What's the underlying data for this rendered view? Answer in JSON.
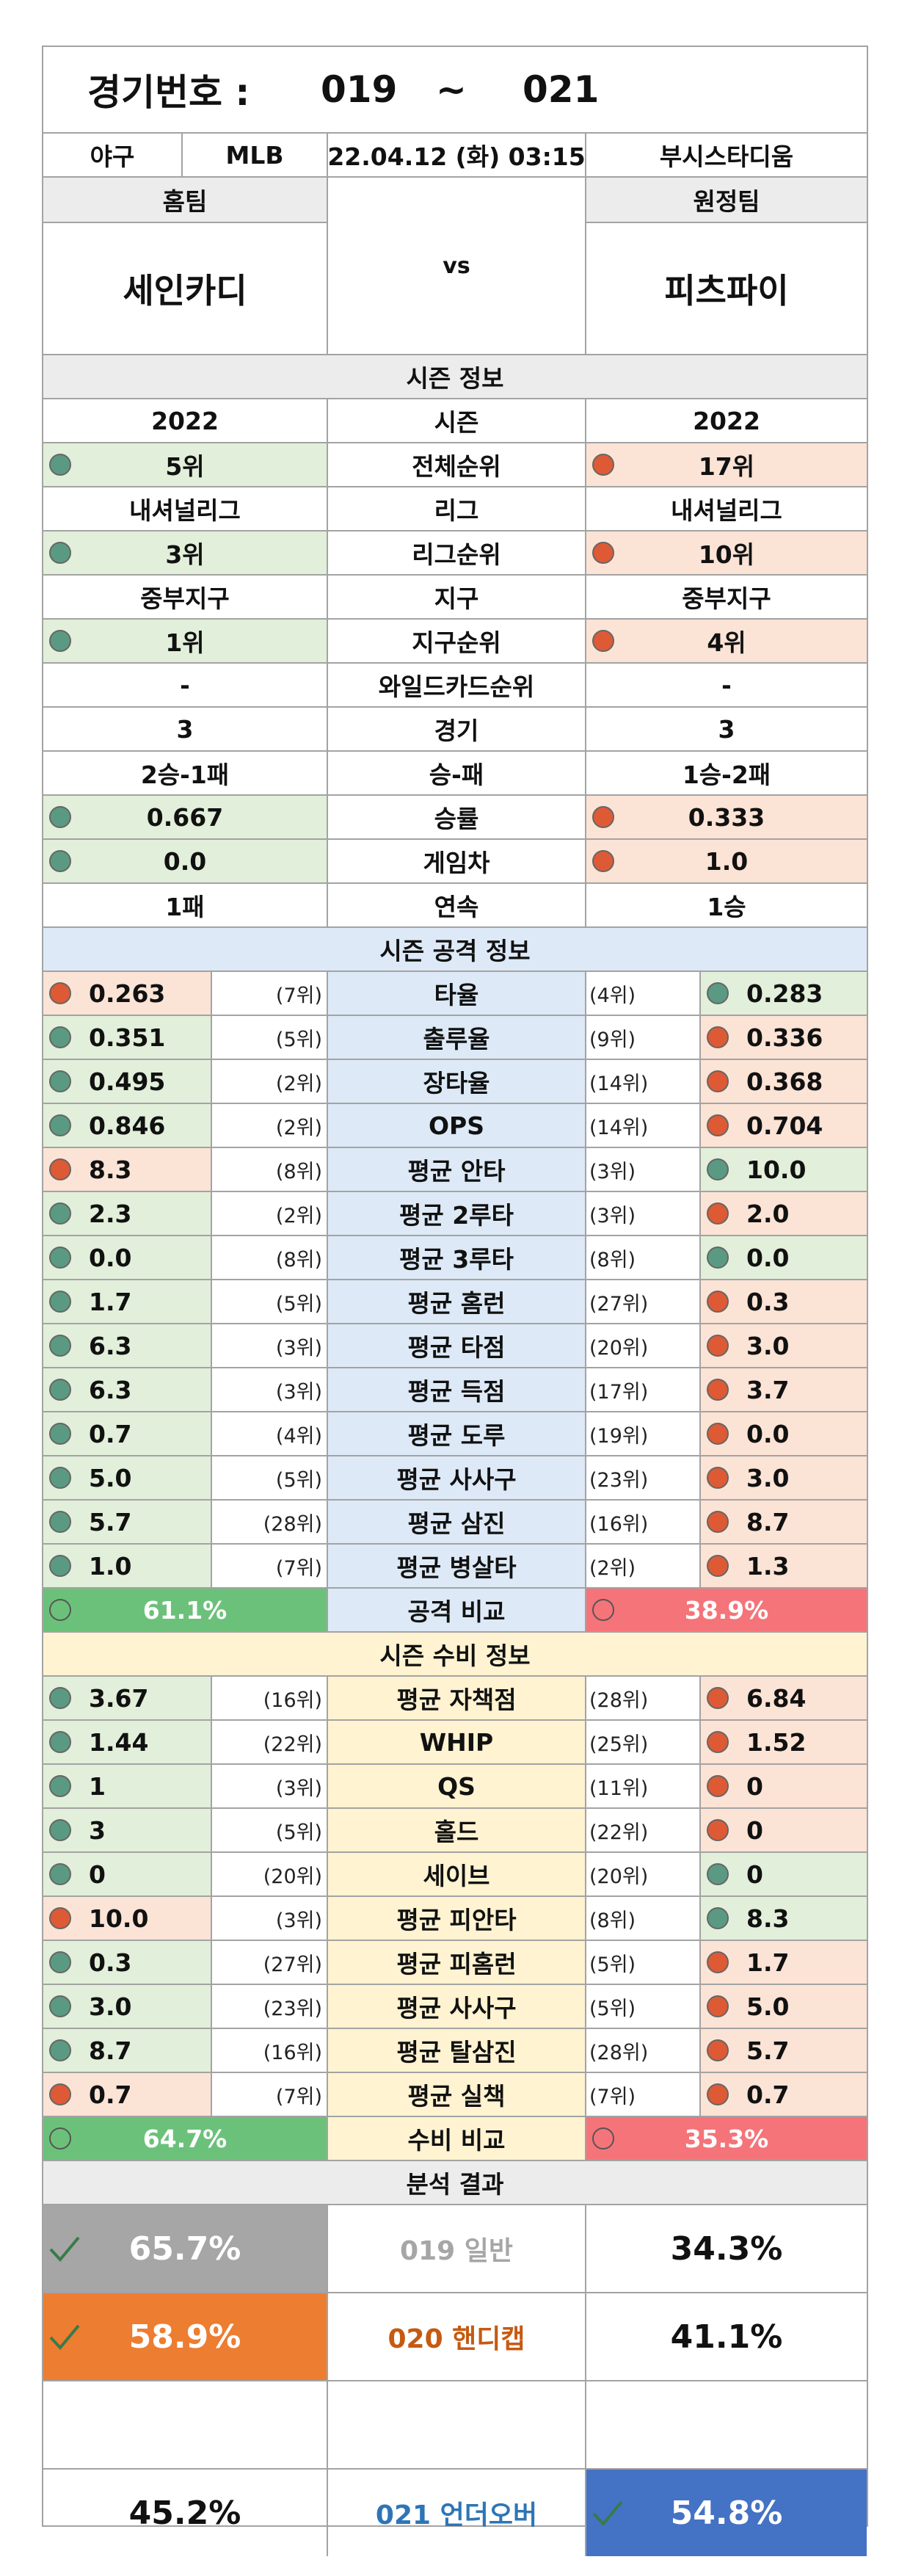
{
  "header": {
    "label": "경기번호 :",
    "from": "019",
    "tilde": "~",
    "to": "021"
  },
  "match": {
    "sport": "야구",
    "league": "MLB",
    "datetime": "22.04.12 (화) 03:15",
    "stadium": "부시스타디움"
  },
  "teams": {
    "home_label": "홈팀",
    "away_label": "원정팀",
    "home": "세인카디",
    "vs": "vs",
    "away": "피츠파이"
  },
  "season": {
    "title": "시즌 정보",
    "rows": [
      {
        "label": "시즌",
        "home": "2022",
        "away": "2022",
        "hd": "",
        "ad": ""
      },
      {
        "label": "전체순위",
        "home": "5위",
        "away": "17위",
        "hd": "g",
        "ad": "r"
      },
      {
        "label": "리그",
        "home": "내셔널리그",
        "away": "내셔널리그",
        "hd": "",
        "ad": ""
      },
      {
        "label": "리그순위",
        "home": "3위",
        "away": "10위",
        "hd": "g",
        "ad": "r"
      },
      {
        "label": "지구",
        "home": "중부지구",
        "away": "중부지구",
        "hd": "",
        "ad": ""
      },
      {
        "label": "지구순위",
        "home": "1위",
        "away": "4위",
        "hd": "g",
        "ad": "r"
      },
      {
        "label": "와일드카드순위",
        "home": "-",
        "away": "-",
        "hd": "",
        "ad": ""
      },
      {
        "label": "경기",
        "home": "3",
        "away": "3",
        "hd": "",
        "ad": ""
      },
      {
        "label": "승-패",
        "home": "2승-1패",
        "away": "1승-2패",
        "hd": "",
        "ad": ""
      },
      {
        "label": "승률",
        "home": "0.667",
        "away": "0.333",
        "hd": "g",
        "ad": "r"
      },
      {
        "label": "게임차",
        "home": "0.0",
        "away": "1.0",
        "hd": "g",
        "ad": "r"
      },
      {
        "label": "연속",
        "home": "1패",
        "away": "1승",
        "hd": "",
        "ad": ""
      }
    ]
  },
  "offense": {
    "title": "시즌 공격 정보",
    "rows": [
      {
        "label": "타율",
        "home": "0.263",
        "hr": "(7위)",
        "away": "0.283",
        "ar": "(4위)",
        "hd": "r",
        "ad": "g"
      },
      {
        "label": "출루율",
        "home": "0.351",
        "hr": "(5위)",
        "away": "0.336",
        "ar": "(9위)",
        "hd": "g",
        "ad": "r"
      },
      {
        "label": "장타율",
        "home": "0.495",
        "hr": "(2위)",
        "away": "0.368",
        "ar": "(14위)",
        "hd": "g",
        "ad": "r"
      },
      {
        "label": "OPS",
        "home": "0.846",
        "hr": "(2위)",
        "away": "0.704",
        "ar": "(14위)",
        "hd": "g",
        "ad": "r"
      },
      {
        "label": "평균 안타",
        "home": "8.3",
        "hr": "(8위)",
        "away": "10.0",
        "ar": "(3위)",
        "hd": "r",
        "ad": "g"
      },
      {
        "label": "평균 2루타",
        "home": "2.3",
        "hr": "(2위)",
        "away": "2.0",
        "ar": "(3위)",
        "hd": "g",
        "ad": "r"
      },
      {
        "label": "평균 3루타",
        "home": "0.0",
        "hr": "(8위)",
        "away": "0.0",
        "ar": "(8위)",
        "hd": "g",
        "ad": "g"
      },
      {
        "label": "평균 홈런",
        "home": "1.7",
        "hr": "(5위)",
        "away": "0.3",
        "ar": "(27위)",
        "hd": "g",
        "ad": "r"
      },
      {
        "label": "평균 타점",
        "home": "6.3",
        "hr": "(3위)",
        "away": "3.0",
        "ar": "(20위)",
        "hd": "g",
        "ad": "r"
      },
      {
        "label": "평균 득점",
        "home": "6.3",
        "hr": "(3위)",
        "away": "3.7",
        "ar": "(17위)",
        "hd": "g",
        "ad": "r"
      },
      {
        "label": "평균 도루",
        "home": "0.7",
        "hr": "(4위)",
        "away": "0.0",
        "ar": "(19위)",
        "hd": "g",
        "ad": "r"
      },
      {
        "label": "평균 사사구",
        "home": "5.0",
        "hr": "(5위)",
        "away": "3.0",
        "ar": "(23위)",
        "hd": "g",
        "ad": "r"
      },
      {
        "label": "평균 삼진",
        "home": "5.7",
        "hr": "(28위)",
        "away": "8.7",
        "ar": "(16위)",
        "hd": "g",
        "ad": "r"
      },
      {
        "label": "평균 병살타",
        "home": "1.0",
        "hr": "(7위)",
        "away": "1.3",
        "ar": "(2위)",
        "hd": "g",
        "ad": "r"
      }
    ],
    "compare": {
      "label": "공격 비교",
      "home": "61.1%",
      "away": "38.9%"
    }
  },
  "defense": {
    "title": "시즌 수비 정보",
    "rows": [
      {
        "label": "평균 자책점",
        "home": "3.67",
        "hr": "(16위)",
        "away": "6.84",
        "ar": "(28위)",
        "hd": "g",
        "ad": "r"
      },
      {
        "label": "WHIP",
        "home": "1.44",
        "hr": "(22위)",
        "away": "1.52",
        "ar": "(25위)",
        "hd": "g",
        "ad": "r"
      },
      {
        "label": "QS",
        "home": "1",
        "hr": "(3위)",
        "away": "0",
        "ar": "(11위)",
        "hd": "g",
        "ad": "r"
      },
      {
        "label": "홀드",
        "home": "3",
        "hr": "(5위)",
        "away": "0",
        "ar": "(22위)",
        "hd": "g",
        "ad": "r"
      },
      {
        "label": "세이브",
        "home": "0",
        "hr": "(20위)",
        "away": "0",
        "ar": "(20위)",
        "hd": "g",
        "ad": "g"
      },
      {
        "label": "평균 피안타",
        "home": "10.0",
        "hr": "(3위)",
        "away": "8.3",
        "ar": "(8위)",
        "hd": "r",
        "ad": "g"
      },
      {
        "label": "평균 피홈런",
        "home": "0.3",
        "hr": "(27위)",
        "away": "1.7",
        "ar": "(5위)",
        "hd": "g",
        "ad": "r"
      },
      {
        "label": "평균 사사구",
        "home": "3.0",
        "hr": "(23위)",
        "away": "5.0",
        "ar": "(5위)",
        "hd": "g",
        "ad": "r"
      },
      {
        "label": "평균 탈삼진",
        "home": "8.7",
        "hr": "(16위)",
        "away": "5.7",
        "ar": "(28위)",
        "hd": "g",
        "ad": "r"
      },
      {
        "label": "평균 실책",
        "home": "0.7",
        "hr": "(7위)",
        "away": "0.7",
        "ar": "(7위)",
        "hd": "r",
        "ad": "r"
      }
    ],
    "compare": {
      "label": "수비 비교",
      "home": "64.7%",
      "away": "35.3%"
    }
  },
  "analysis": {
    "title": "분석 결과",
    "general": {
      "home": "65.7%",
      "label": "019 일반",
      "away": "34.3%"
    },
    "handicap": {
      "home": "58.9%",
      "label": "020 핸디캡",
      "away": "41.1%"
    },
    "overunder": {
      "home": "45.2%",
      "label": "021 언더오버",
      "away": "54.8%"
    }
  },
  "colors": {
    "green_dot": "#5b9a82",
    "red_dot": "#dd5a35",
    "green_bar": "#6cc17a",
    "red_bar": "#f4747a",
    "general_pick": "#a6a6a6",
    "handicap_pick": "#ed7d31",
    "overunder_pick": "#4472c4",
    "handicap_text": "#c55a11",
    "overunder_text": "#2e75b6"
  }
}
